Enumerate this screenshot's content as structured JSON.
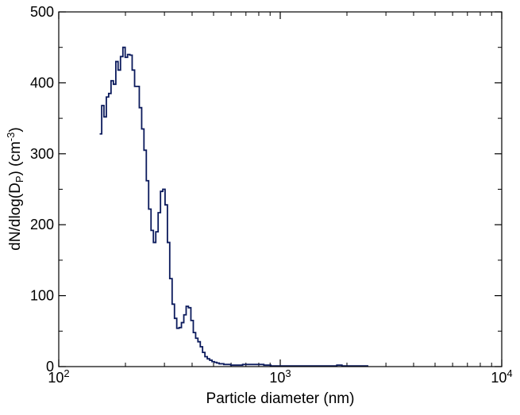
{
  "chart_data": {
    "type": "step",
    "xlabel": "Particle diameter (nm)",
    "ylabel_main": "dN/dlog(D",
    "ylabel_sub": "P",
    "ylabel_tail": ") (cm",
    "ylabel_sup": "-3",
    "ylabel_end": ")",
    "x_scale": "log",
    "xlim": [
      100,
      10000
    ],
    "ylim": [
      0,
      500
    ],
    "grid": false,
    "line_color": "#0b1a5c",
    "x_ticks": [
      {
        "value": 100,
        "base": "10",
        "exp": "2"
      },
      {
        "value": 1000,
        "base": "10",
        "exp": "3"
      },
      {
        "value": 10000,
        "base": "10",
        "exp": "4"
      }
    ],
    "y_ticks": [
      {
        "value": 0,
        "label": "0"
      },
      {
        "value": 100,
        "label": "100"
      },
      {
        "value": 200,
        "label": "200"
      },
      {
        "value": 300,
        "label": "300"
      },
      {
        "value": 400,
        "label": "400"
      },
      {
        "value": 500,
        "label": "500"
      }
    ],
    "series": [
      {
        "x": [
          153.0,
          156.3,
          160.0,
          164.0,
          168.0,
          172.2,
          176.5,
          181.0,
          185.3,
          190.0,
          194.8,
          199.5,
          204.5,
          209.5,
          214.5,
          220.0,
          225.5,
          231.0,
          236.8,
          242.5,
          248.5,
          254.6,
          261.0,
          267.5,
          274.2,
          281.0,
          288.0,
          295.0,
          302.0,
          309.5,
          317.0,
          325.0,
          333.0,
          341.0,
          349.5,
          358.0,
          367.0,
          376.0,
          385.0,
          395.0,
          405.0,
          415.0,
          425.0,
          435.5,
          446.0,
          457.0,
          468.5,
          480.0,
          492.0,
          504.0,
          517.0,
          530.0,
          543.0,
          556.0,
          570.0,
          584.0,
          598.0,
          613.0,
          628.0,
          644.0,
          660.0,
          676.0,
          693.0,
          710.0,
          728.0,
          746.0,
          764.0,
          783.0,
          802.0,
          822.0,
          843.0,
          864.0,
          885.0,
          907.0,
          930.0,
          953.0,
          976.0,
          1000.0,
          1025.0,
          1051.0,
          1077.0,
          1104.0,
          1131.0,
          1160.0,
          1200.0,
          1300.0,
          1400.0,
          1500.0,
          1600.0,
          1700.0,
          1800.0,
          1900.0,
          2000.0,
          2100.0,
          2200.0,
          2300.0,
          2400.0,
          2480.0
        ],
        "y": [
          328,
          368,
          352,
          380,
          385,
          403,
          398,
          430,
          418,
          437,
          450,
          436,
          440,
          439,
          418,
          395,
          395,
          365,
          335,
          305,
          262,
          222,
          192,
          175,
          190,
          217,
          247,
          250,
          228,
          175,
          124,
          88,
          68,
          54,
          55,
          62,
          73,
          85,
          83,
          65,
          48,
          40,
          35,
          28,
          20,
          14,
          11,
          9,
          7,
          6,
          5,
          4,
          4,
          3,
          3,
          3,
          2,
          2,
          2,
          2,
          2,
          3,
          3,
          3,
          3,
          3,
          3,
          3,
          3,
          3,
          2,
          2,
          2,
          1,
          1,
          1,
          1,
          1,
          1,
          1,
          1,
          1,
          1,
          1,
          1,
          1,
          1,
          1,
          1,
          1,
          2,
          1,
          1,
          1,
          1,
          1,
          1,
          0
        ]
      }
    ]
  }
}
